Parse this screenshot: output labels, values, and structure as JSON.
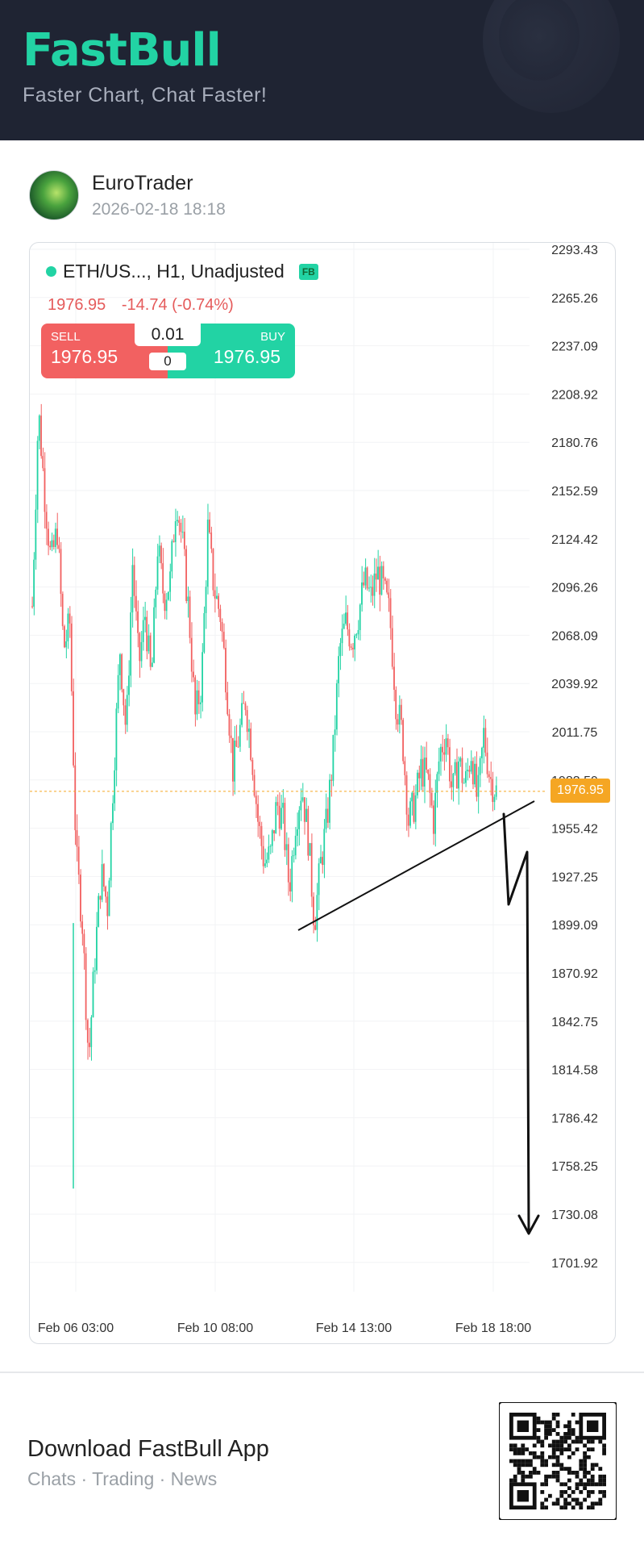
{
  "header": {
    "logo": "FastBull",
    "tagline": "Faster Chart, Chat Faster!"
  },
  "author": {
    "name": "EuroTrader",
    "timestamp": "2026-02-18 18:18"
  },
  "chart": {
    "symbol": "ETH/US...",
    "interval_label": ", H1, Unadjusted",
    "badge": "FB",
    "last_price": "1976.95",
    "change": "-14.74 (-0.74%)",
    "trade": {
      "sell_label": "SELL",
      "sell_price": "1976.95",
      "buy_label": "BUY",
      "buy_price": "1976.95",
      "quantity": "0.01",
      "spread": "0"
    },
    "current_price_tag": "1976.95",
    "colors": {
      "up": "#22d3a4",
      "down": "#f26161",
      "price_line": "#f5a623"
    }
  },
  "chart_data": {
    "type": "candlestick",
    "y_ticks": [
      "2293.43",
      "2265.26",
      "2237.09",
      "2208.92",
      "2180.76",
      "2152.59",
      "2124.42",
      "2096.26",
      "2068.09",
      "2039.92",
      "2011.75",
      "1983.59",
      "1955.42",
      "1927.25",
      "1899.09",
      "1870.92",
      "1842.75",
      "1814.58",
      "1786.42",
      "1758.25",
      "1730.08",
      "1701.92"
    ],
    "ylim": [
      1690,
      2300
    ],
    "x_ticks": [
      "Feb 06 03:00",
      "Feb 10 08:00",
      "Feb 14 13:00",
      "Feb 18 18:00"
    ],
    "close_path": [
      2085,
      2200,
      2150,
      2110,
      2130,
      2060,
      2075,
      1940,
      1900,
      1820,
      1880,
      1930,
      1910,
      1990,
      2060,
      2010,
      2110,
      2050,
      2080,
      2040,
      2120,
      2090,
      2100,
      2150,
      2120,
      2080,
      2020,
      2040,
      2130,
      2095,
      2080,
      2040,
      1990,
      2010,
      2030,
      2000,
      1960,
      1935,
      1940,
      1970,
      1960,
      1920,
      1960,
      1980,
      1950,
      1900,
      1935,
      1960,
      2000,
      2060,
      2075,
      2065,
      2080,
      2100,
      2090,
      2105,
      2095,
      2080,
      2030,
      2010,
      1960,
      1970,
      1990,
      1985,
      1960,
      2000,
      2010,
      1975,
      1995,
      1980,
      2000,
      1970,
      2010,
      1985,
      1976.95
    ],
    "annotations": [
      "trendline",
      "hand-drawn arrow down"
    ]
  },
  "footer": {
    "title": "Download FastBull App",
    "subtitle": "Chats · Trading · News"
  }
}
